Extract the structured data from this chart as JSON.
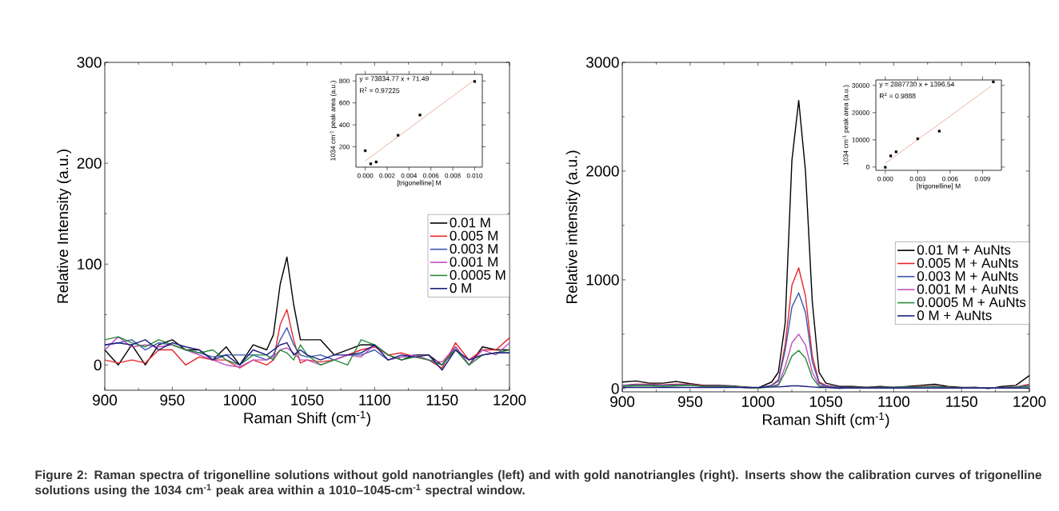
{
  "chart_data": [
    {
      "type": "line",
      "xlabel": "Raman Shift (cm$^{-1}$)",
      "ylabel": "Relative Intensity (a.u.)",
      "xlim": [
        900,
        1200
      ],
      "ylim": [
        -25,
        300
      ],
      "xticks": [
        900,
        950,
        1000,
        1050,
        1100,
        1150,
        1200
      ],
      "yticks": [
        0,
        100,
        200,
        300
      ],
      "legend": "right",
      "annotations": [
        "**Figure 2: Raman spectra of trigonelline solutions without gold nanotriangles (left) and with gold nanotriangles (right). Inserts show the calibration curves of trigonelline solutions using the 1034 cm$^{-1}$ peak area within a 1010–1045-cm$^{-1}$ spectral window.**"
      ],
      "x": [
        900,
        910,
        920,
        930,
        940,
        950,
        960,
        970,
        980,
        990,
        1000,
        1010,
        1020,
        1025,
        1030,
        1035,
        1040,
        1045,
        1050,
        1060,
        1070,
        1080,
        1090,
        1100,
        1110,
        1120,
        1130,
        1140,
        1150,
        1160,
        1170,
        1180,
        1190,
        1200
      ],
      "series": [
        {
          "name": "0.01 M",
          "color": "#000000",
          "values": [
            15,
            0,
            20,
            0,
            20,
            25,
            15,
            15,
            5,
            18,
            0,
            20,
            15,
            30,
            80,
            107,
            60,
            25,
            25,
            25,
            10,
            15,
            20,
            20,
            10,
            5,
            10,
            10,
            0,
            18,
            0,
            18,
            15,
            15
          ]
        },
        {
          "name": "0.005 M",
          "color": "#e8262a",
          "values": [
            5,
            2,
            5,
            2,
            15,
            15,
            0,
            8,
            5,
            5,
            -3,
            5,
            0,
            5,
            40,
            55,
            25,
            2,
            5,
            3,
            5,
            10,
            15,
            18,
            10,
            12,
            8,
            5,
            -3,
            22,
            5,
            15,
            15,
            27
          ]
        },
        {
          "name": "0.003 M",
          "color": "#3a56b0",
          "values": [
            20,
            22,
            25,
            15,
            22,
            20,
            15,
            12,
            8,
            10,
            10,
            10,
            5,
            10,
            25,
            37,
            20,
            10,
            8,
            10,
            5,
            10,
            10,
            15,
            5,
            8,
            10,
            5,
            0,
            15,
            5,
            10,
            12,
            12
          ]
        },
        {
          "name": "0.001 M",
          "color": "#c050c0",
          "values": [
            15,
            28,
            18,
            20,
            18,
            20,
            15,
            10,
            5,
            0,
            -2,
            5,
            5,
            8,
            15,
            17,
            12,
            5,
            5,
            0,
            5,
            10,
            8,
            20,
            5,
            8,
            10,
            5,
            3,
            18,
            0,
            15,
            10,
            22
          ]
        },
        {
          "name": "0.0005 M",
          "color": "#2a8a3a",
          "values": [
            25,
            28,
            22,
            18,
            25,
            20,
            15,
            12,
            15,
            5,
            0,
            10,
            10,
            5,
            15,
            12,
            5,
            20,
            10,
            0,
            5,
            0,
            25,
            20,
            10,
            5,
            8,
            5,
            0,
            15,
            0,
            10,
            12,
            15
          ]
        },
        {
          "name": "0 M",
          "color": "#1e1e80",
          "values": [
            20,
            22,
            20,
            25,
            15,
            22,
            18,
            15,
            5,
            10,
            0,
            15,
            10,
            15,
            20,
            22,
            10,
            15,
            10,
            5,
            10,
            10,
            12,
            20,
            5,
            10,
            8,
            10,
            -5,
            15,
            5,
            10,
            12,
            12
          ]
        }
      ]
    },
    {
      "type": "scatter",
      "xlabel": "[trigonelline] M",
      "ylabel": "1034 cm$^{-1}$ peak area (a.u.)",
      "xlim": [
        -0.00085,
        0.0107
      ],
      "ylim": [
        15,
        860
      ],
      "xticks": [
        {
          "value": 0,
          "label": "0.000"
        },
        {
          "value": 0.002,
          "label": "0.002"
        },
        {
          "value": 0.004,
          "label": "0.004"
        },
        {
          "value": 0.006,
          "label": "0.006"
        },
        {
          "value": 0.008,
          "label": "0.008"
        },
        {
          "value": 0.01,
          "label": "0.010"
        }
      ],
      "yticks": [
        200,
        400,
        600,
        800
      ],
      "annotations": [
        "y = 73834.77 x + 71.49",
        "R$^{2}$ = 0.97225"
      ],
      "series": [
        {
          "type": "scatter",
          "marker": "square",
          "color": "#000000",
          "x": [
            0,
            0.0005,
            0.001,
            0.003,
            0.005,
            0.01
          ],
          "values": [
            165,
            45,
            62,
            305,
            490,
            795
          ]
        },
        {
          "type": "line",
          "color": "#d9825e",
          "x": [
            0,
            0.01
          ],
          "values": [
            71,
            810
          ]
        }
      ]
    },
    {
      "type": "line",
      "xlabel": "Raman Shift (cm$^{-1}$)",
      "ylabel": "Relative intensity (a.u.)",
      "xlim": [
        900,
        1200
      ],
      "ylim": [
        -30,
        3000
      ],
      "xticks": [
        900,
        950,
        1000,
        1050,
        1100,
        1150,
        1200
      ],
      "yticks": [
        0,
        1000,
        2000,
        3000
      ],
      "legend": "right",
      "x": [
        900,
        910,
        920,
        930,
        940,
        950,
        960,
        970,
        980,
        990,
        1000,
        1010,
        1015,
        1020,
        1025,
        1030,
        1035,
        1040,
        1045,
        1050,
        1060,
        1070,
        1080,
        1090,
        1100,
        1110,
        1120,
        1130,
        1140,
        1150,
        1160,
        1170,
        1180,
        1190,
        1200
      ],
      "series": [
        {
          "name": "0.01 M + AuNts",
          "color": "#000000",
          "values": [
            60,
            70,
            50,
            50,
            65,
            45,
            30,
            30,
            25,
            15,
            5,
            60,
            150,
            600,
            2100,
            2650,
            2000,
            800,
            150,
            50,
            20,
            20,
            10,
            20,
            10,
            20,
            30,
            40,
            20,
            10,
            10,
            0,
            20,
            30,
            120
          ]
        },
        {
          "name": "0.005 M + AuNts",
          "color": "#e8262a",
          "values": [
            30,
            40,
            40,
            35,
            40,
            40,
            25,
            20,
            20,
            10,
            5,
            30,
            80,
            400,
            950,
            1110,
            850,
            300,
            60,
            30,
            10,
            10,
            10,
            10,
            10,
            15,
            20,
            20,
            15,
            5,
            10,
            5,
            10,
            15,
            40
          ]
        },
        {
          "name": "0.003 M + AuNts",
          "color": "#3a56b0",
          "values": [
            30,
            35,
            35,
            30,
            35,
            35,
            20,
            20,
            20,
            10,
            5,
            30,
            70,
            350,
            750,
            880,
            700,
            250,
            50,
            25,
            10,
            10,
            10,
            10,
            10,
            15,
            15,
            20,
            10,
            5,
            10,
            5,
            10,
            15,
            30
          ]
        },
        {
          "name": "0.001 M + AuNts",
          "color": "#c050c0",
          "values": [
            null,
            null,
            null,
            null,
            null,
            null,
            null,
            null,
            null,
            null,
            null,
            20,
            40,
            200,
            420,
            500,
            400,
            150,
            30,
            20,
            5,
            null,
            null,
            null,
            null,
            null,
            null,
            null,
            null,
            null,
            null,
            null,
            null,
            null,
            null
          ]
        },
        {
          "name": "0.0005 M + AuNts",
          "color": "#2a8a3a",
          "values": [
            20,
            25,
            25,
            20,
            25,
            30,
            20,
            15,
            20,
            10,
            5,
            15,
            30,
            150,
            300,
            350,
            280,
            100,
            20,
            15,
            0,
            10,
            5,
            10,
            10,
            10,
            15,
            15,
            10,
            5,
            5,
            5,
            5,
            10,
            20
          ]
        },
        {
          "name": "0 M + AuNts",
          "color": "#1e1e80",
          "values": [
            10,
            10,
            10,
            10,
            10,
            10,
            10,
            10,
            10,
            10,
            10,
            15,
            15,
            20,
            25,
            25,
            20,
            15,
            10,
            10,
            5,
            5,
            5,
            5,
            5,
            5,
            5,
            5,
            5,
            5,
            5,
            5,
            5,
            5,
            5
          ]
        }
      ]
    },
    {
      "type": "scatter",
      "xlabel": "[trigonelline] M",
      "ylabel": "1034 cm$^{-1}$ peak area (a.u.)",
      "xlim": [
        -0.000875,
        0.01075
      ],
      "ylim": [
        -1200,
        32000
      ],
      "xticks": [
        {
          "value": 0,
          "label": "0.000"
        },
        {
          "value": 0.003,
          "label": "0.003"
        },
        {
          "value": 0.006,
          "label": "0.006"
        },
        {
          "value": 0.009,
          "label": "0.009"
        }
      ],
      "yticks": [
        0,
        10000,
        20000,
        30000
      ],
      "annotations": [
        "y = 2887730 x + 1396.54",
        "R$^{2}$ = 0.9888"
      ],
      "series": [
        {
          "type": "scatter",
          "marker": "square",
          "color": "#000000",
          "x": [
            0,
            0.0005,
            0.001,
            0.003,
            0.005,
            0.01
          ],
          "values": [
            -100,
            4100,
            5600,
            10400,
            13200,
            31300
          ]
        },
        {
          "type": "line",
          "color": "#d9825e",
          "x": [
            0,
            0.0098
          ],
          "values": [
            1400,
            29700
          ]
        }
      ]
    }
  ]
}
